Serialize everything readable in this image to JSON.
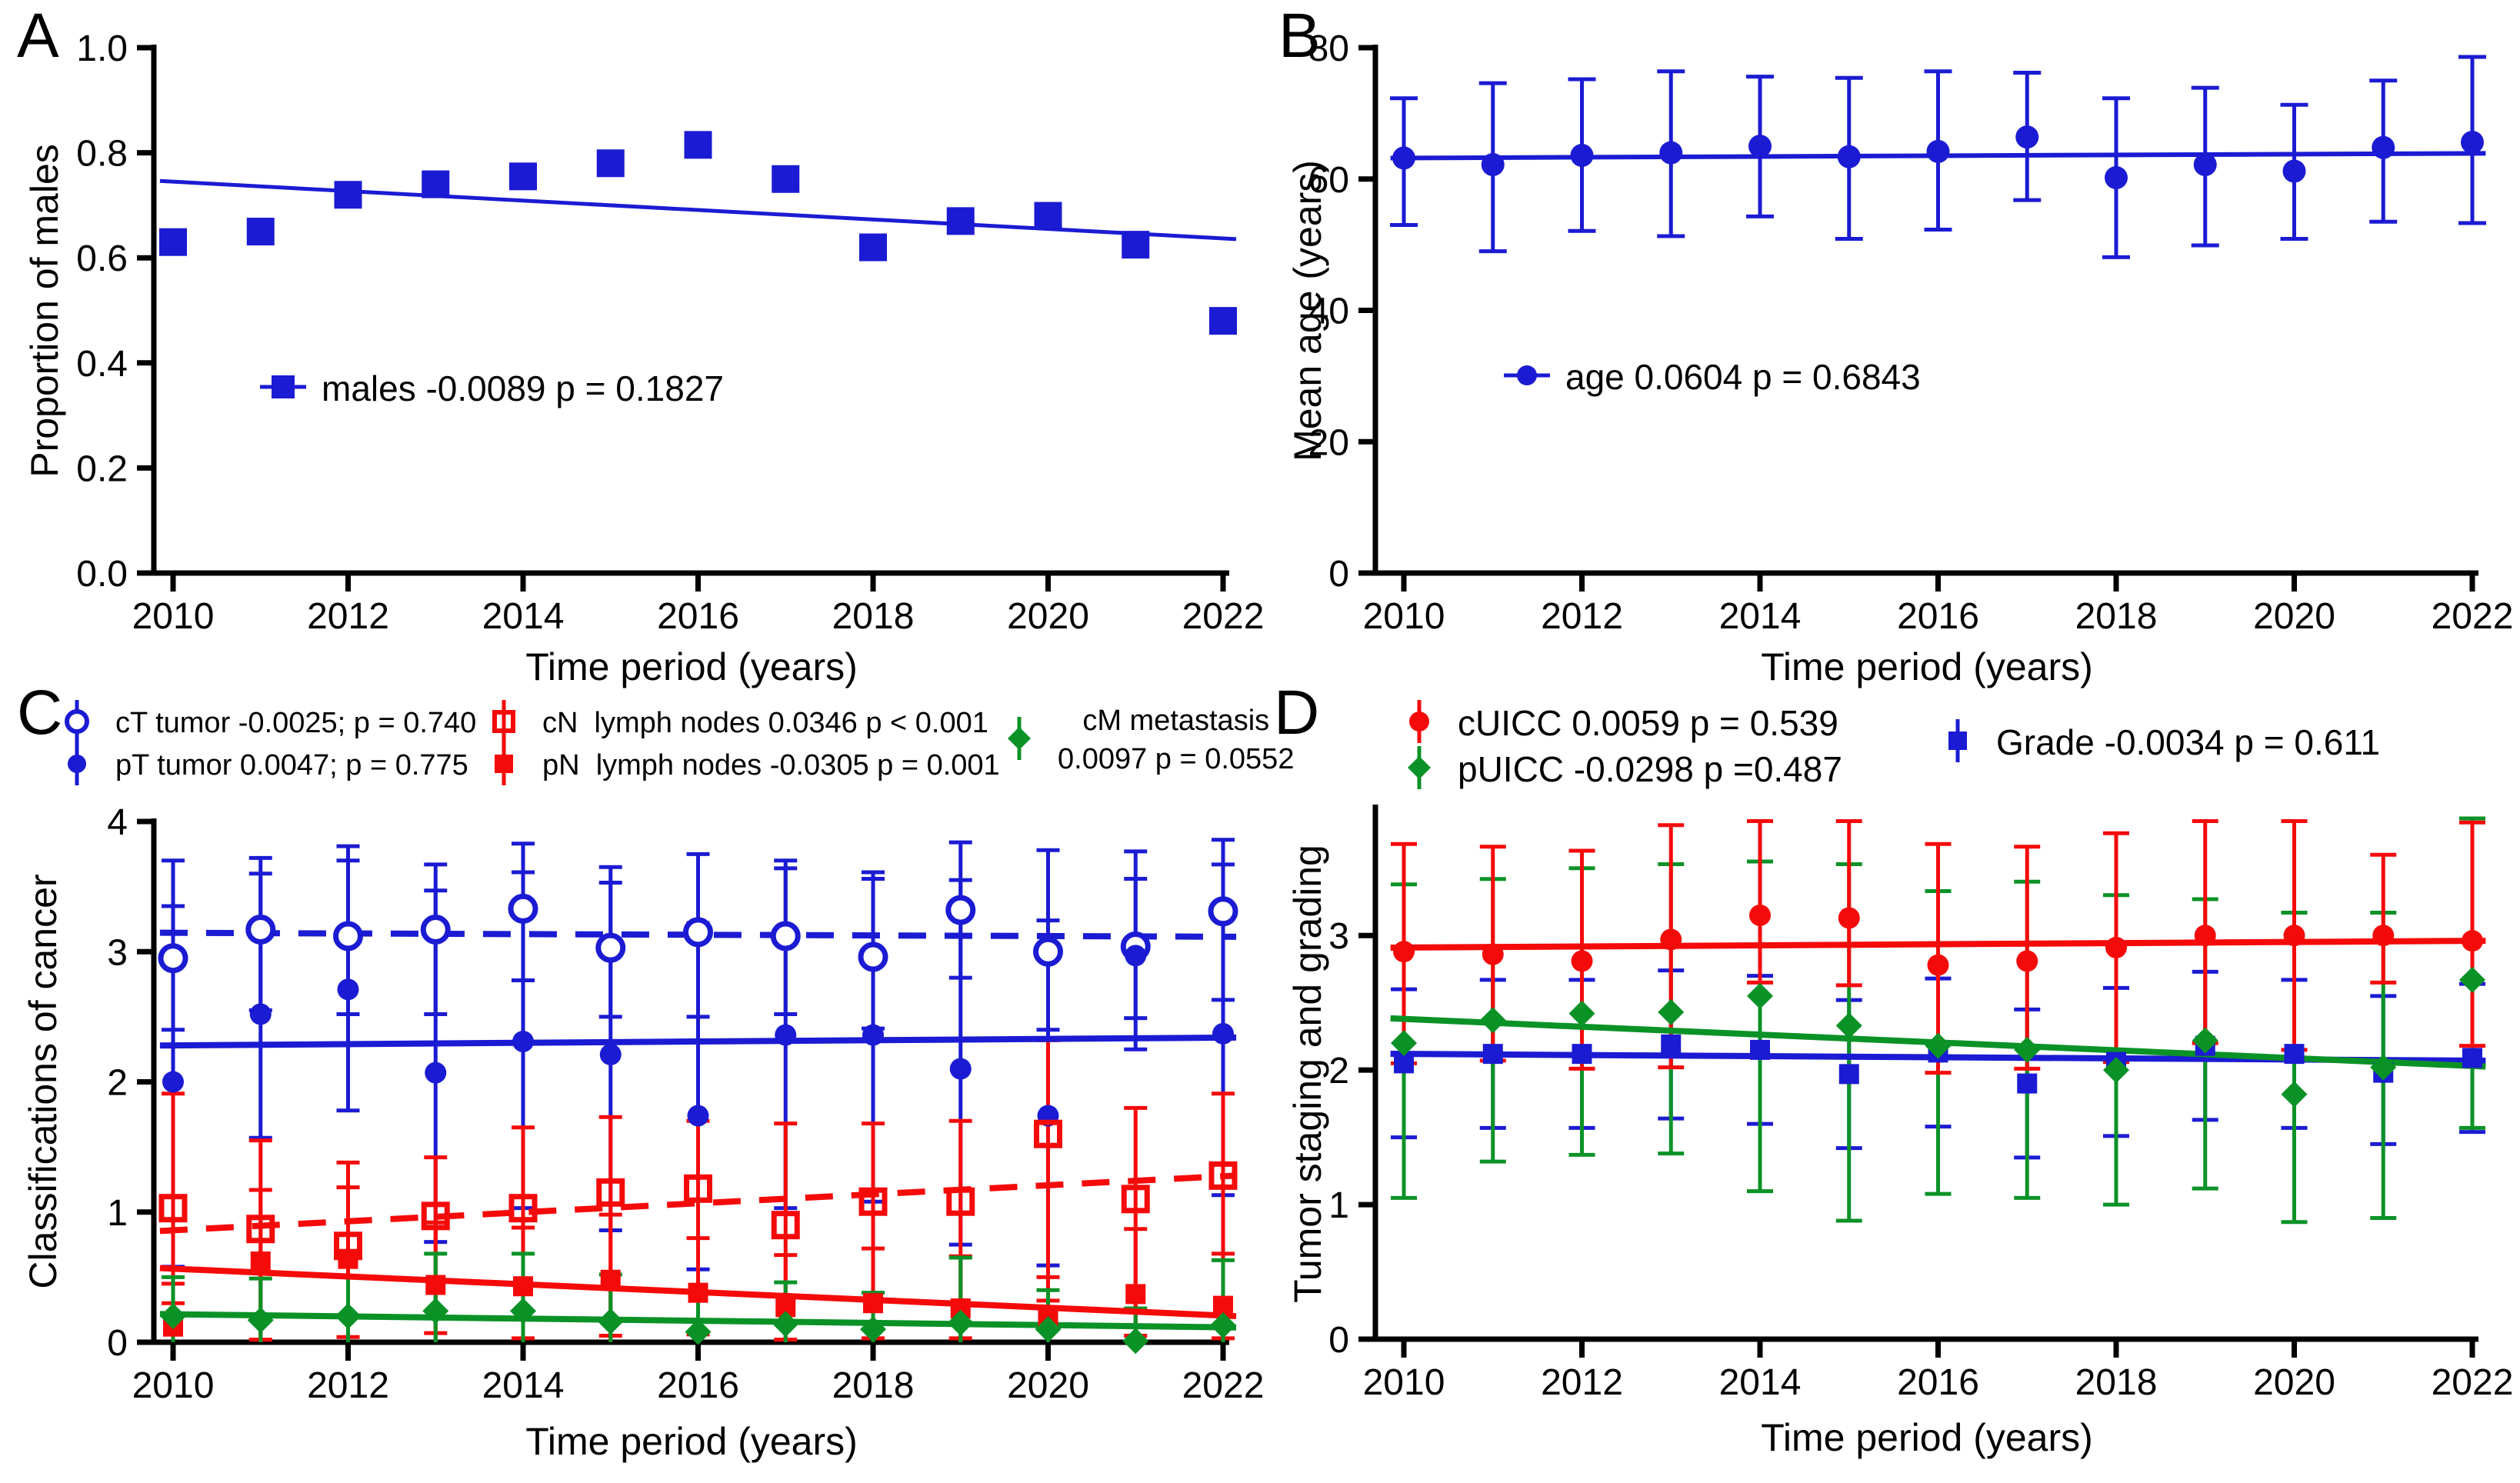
{
  "figure": {
    "background": "#ffffff",
    "colors": {
      "blue": "#1b1bd3",
      "red": "#f50a0a",
      "green": "#0b9227",
      "axis": "#000000"
    }
  },
  "chart_data": [
    {
      "panel_label": "A",
      "type": "scatter",
      "xlabel": "Time period (years)",
      "ylabel": "Proportion of males",
      "x": [
        2010,
        2011,
        2012,
        2013,
        2014,
        2015,
        2016,
        2017,
        2018,
        2019,
        2020,
        2021,
        2022
      ],
      "xticks": [
        2010,
        2012,
        2014,
        2016,
        2018,
        2020,
        2022
      ],
      "xtick_labels": [
        "2010",
        "2012",
        "2014",
        "2016",
        "2018",
        "2020",
        "2022"
      ],
      "ylim": [
        0,
        1.0
      ],
      "yticks": [
        0,
        0.2,
        0.4,
        0.6,
        0.8,
        1.0
      ],
      "ytick_labels": [
        "0.0",
        "0.2",
        "0.4",
        "0.6",
        "0.8",
        "1.0"
      ],
      "grid": false,
      "series": [
        {
          "name": "males",
          "color": "#1b1bd3",
          "marker": "square-filled",
          "size": 18,
          "values": [
            0.63,
            0.65,
            0.72,
            0.74,
            0.755,
            0.78,
            0.815,
            0.75,
            0.62,
            0.67,
            0.68,
            0.625,
            0.48
          ],
          "trend": {
            "y_start": 0.745,
            "y_end": 0.637,
            "style": "solid"
          }
        }
      ],
      "legend": {
        "position": "inside-lower-left",
        "entries": [
          {
            "label": "males -0.0089 p = 0.1827",
            "marker": "square-filled",
            "color": "#1b1bd3",
            "size": 15,
            "whisker": "h"
          }
        ]
      }
    },
    {
      "panel_label": "B",
      "type": "scatter",
      "xlabel": "Time period (years)",
      "ylabel": "Mean age (years)",
      "x": [
        2010,
        2011,
        2012,
        2013,
        2014,
        2015,
        2016,
        2017,
        2018,
        2019,
        2020,
        2021,
        2022
      ],
      "xticks": [
        2010,
        2012,
        2014,
        2016,
        2018,
        2020,
        2022
      ],
      "xtick_labels": [
        "2010",
        "2012",
        "2014",
        "2016",
        "2018",
        "2020",
        "2022"
      ],
      "ylim": [
        0,
        80
      ],
      "yticks": [
        0,
        20,
        40,
        60,
        80
      ],
      "ytick_labels": [
        "0",
        "20",
        "40",
        "60",
        "80"
      ],
      "grid": false,
      "series": [
        {
          "name": "age",
          "color": "#1b1bd3",
          "marker": "circle-filled",
          "size": 15,
          "values": [
            63.2,
            62.2,
            63.6,
            64.0,
            65.0,
            63.4,
            64.2,
            66.4,
            60.2,
            62.2,
            61.2,
            64.8,
            65.6
          ],
          "err_up": [
            9.1,
            12.4,
            11.6,
            12.4,
            10.6,
            12.0,
            12.2,
            9.8,
            12.1,
            11.7,
            10.1,
            10.2,
            13.0
          ],
          "err_dn": [
            10.2,
            13.2,
            11.5,
            12.7,
            10.7,
            12.5,
            11.9,
            9.6,
            12.1,
            12.3,
            10.3,
            11.3,
            12.3
          ],
          "trend": {
            "y_start": 63.2,
            "y_end": 63.9,
            "style": "solid"
          }
        }
      ],
      "legend": {
        "position": "inside-lower-left",
        "entries": [
          {
            "label": "age 0.0604 p = 0.6843",
            "marker": "circle-filled",
            "color": "#1b1bd3",
            "size": 13,
            "whisker": "h"
          }
        ]
      }
    },
    {
      "panel_label": "C",
      "type": "scatter",
      "xlabel": "Time period (years)",
      "ylabel": "Classifications of cancer",
      "x": [
        2010,
        2011,
        2012,
        2013,
        2014,
        2015,
        2016,
        2017,
        2018,
        2019,
        2020,
        2021,
        2022
      ],
      "xticks": [
        2010,
        2012,
        2014,
        2016,
        2018,
        2020,
        2022
      ],
      "xtick_labels": [
        "2010",
        "2012",
        "2014",
        "2016",
        "2018",
        "2020",
        "2022"
      ],
      "ylim": [
        0,
        4
      ],
      "yticks": [
        0,
        1,
        2,
        3,
        4
      ],
      "ytick_labels": [
        "0",
        "1",
        "2",
        "3",
        "4"
      ],
      "grid": false,
      "series": [
        {
          "name": "cT tumor",
          "color": "#1b1bd3",
          "marker": "circle-open",
          "size": 16,
          "values": [
            2.95,
            3.17,
            3.12,
            3.17,
            3.33,
            3.03,
            3.15,
            3.12,
            2.96,
            3.32,
            3.0,
            3.04,
            3.31
          ],
          "err_up": [
            0.75,
            0.55,
            0.58,
            0.5,
            0.5,
            0.62,
            0.6,
            0.58,
            0.6,
            0.52,
            0.78,
            0.52,
            0.55
          ],
          "err_dn": [
            0.55,
            0.62,
            0.6,
            0.65,
            0.55,
            0.53,
            0.65,
            0.6,
            0.55,
            0.52,
            0.6,
            0.55,
            0.68
          ],
          "trend": {
            "y_start": 3.145,
            "y_end": 3.115,
            "style": "dashed"
          }
        },
        {
          "name": "pT tumor",
          "color": "#1b1bd3",
          "marker": "circle-filled",
          "size": 14,
          "values": [
            2.0,
            2.52,
            2.71,
            2.07,
            2.31,
            2.21,
            1.74,
            2.36,
            2.36,
            2.1,
            1.74,
            2.97,
            2.37
          ],
          "err_up": [
            1.35,
            1.08,
            1.1,
            1.4,
            1.3,
            1.32,
            1.48,
            1.28,
            1.25,
            1.45,
            1.5,
            0.8,
            1.3
          ],
          "err_dn": [
            1.42,
            0.95,
            0.93,
            1.3,
            1.28,
            1.35,
            1.18,
            1.33,
            1.28,
            1.35,
            1.15,
            0.72,
            1.24
          ],
          "trend": {
            "y_start": 2.28,
            "y_end": 2.34,
            "style": "solid"
          }
        },
        {
          "name": "cN lymph nodes",
          "color": "#f50a0a",
          "marker": "square-open",
          "size": 15,
          "values": [
            1.03,
            0.87,
            0.74,
            0.97,
            1.03,
            1.15,
            1.18,
            0.9,
            1.08,
            1.08,
            1.6,
            1.1,
            1.28
          ],
          "err_up": [
            0.88,
            0.68,
            0.64,
            0.45,
            0.62,
            0.58,
            0.52,
            0.78,
            0.6,
            0.62,
            0.72,
            0.7,
            0.63
          ],
          "err_dn": [
            0.73,
            0.85,
            0.7,
            0.9,
            1.0,
            1.1,
            1.12,
            0.88,
            1.05,
            1.05,
            1.28,
            1.05,
            1.25
          ],
          "trend": {
            "y_start": 0.86,
            "y_end": 1.275,
            "style": "dashed"
          }
        },
        {
          "name": "pN lymph nodes",
          "color": "#f50a0a",
          "marker": "square-filled",
          "size": 13,
          "values": [
            0.12,
            0.62,
            0.64,
            0.44,
            0.43,
            0.48,
            0.38,
            0.27,
            0.3,
            0.26,
            0.2,
            0.37,
            0.28
          ],
          "err_up": [
            0.33,
            0.55,
            0.55,
            0.48,
            0.45,
            0.5,
            0.42,
            0.4,
            0.42,
            0.4,
            0.3,
            0.5,
            0.4
          ],
          "err_dn": [
            0.12,
            0.62,
            0.64,
            0.44,
            0.43,
            0.48,
            0.38,
            0.27,
            0.3,
            0.26,
            0.2,
            0.37,
            0.28
          ],
          "trend": {
            "y_start": 0.565,
            "y_end": 0.205,
            "style": "solid"
          }
        },
        {
          "name": "cM metastasis",
          "color": "#0b9227",
          "marker": "diamond-filled",
          "size": 17,
          "values": [
            0.2,
            0.17,
            0.2,
            0.24,
            0.24,
            0.16,
            0.08,
            0.14,
            0.1,
            0.15,
            0.1,
            0.01,
            0.13
          ],
          "err_up": [
            0.3,
            0.32,
            0.3,
            0.44,
            0.44,
            0.36,
            0.3,
            0.32,
            0.28,
            0.5,
            0.3,
            0.25,
            0.5
          ],
          "err_dn": [
            0.2,
            0.17,
            0.2,
            0.24,
            0.24,
            0.16,
            0.08,
            0.14,
            0.1,
            0.15,
            0.1,
            0.01,
            0.13
          ],
          "trend": {
            "y_start": 0.215,
            "y_end": 0.115,
            "style": "solid"
          }
        }
      ],
      "legend": {
        "position": "above",
        "entries": [
          {
            "label": "cT tumor -0.0025; p = 0.740",
            "marker": "circle-open",
            "color": "#1b1bd3",
            "size": 13,
            "whisker": "v"
          },
          {
            "label": "pT tumor 0.0047; p = 0.775",
            "marker": "circle-filled",
            "color": "#1b1bd3",
            "size": 12,
            "whisker": "v"
          },
          {
            "label": "cN  lymph nodes 0.0346 p < 0.001",
            "marker": "square-open",
            "color": "#f50a0a",
            "size": 12,
            "whisker": "v"
          },
          {
            "label": "pN  lymph nodes -0.0305 p = 0.001",
            "marker": "square-filled",
            "color": "#f50a0a",
            "size": 12,
            "whisker": "v"
          },
          {
            "label": "cM metastasis",
            "label2": "0.0097 p = 0.0552",
            "marker": "diamond-filled",
            "color": "#0b9227",
            "size": 15,
            "whisker": "v"
          }
        ]
      }
    },
    {
      "panel_label": "D",
      "type": "scatter",
      "xlabel": "Time period (years)",
      "ylabel": "Tumor staging and grading",
      "x": [
        2010,
        2011,
        2012,
        2013,
        2014,
        2015,
        2016,
        2017,
        2018,
        2019,
        2020,
        2021,
        2022
      ],
      "xticks": [
        2010,
        2012,
        2014,
        2016,
        2018,
        2020,
        2022
      ],
      "xtick_labels": [
        "2010",
        "2012",
        "2014",
        "2016",
        "2018",
        "2020",
        "2022"
      ],
      "ylim": [
        0,
        3.95
      ],
      "yticks": [
        0,
        1,
        2,
        3
      ],
      "ytick_labels": [
        "0",
        "1",
        "2",
        "3"
      ],
      "grid": false,
      "series": [
        {
          "name": "Grade",
          "color": "#1b1bd3",
          "marker": "square-filled",
          "size": 13,
          "values": [
            2.05,
            2.12,
            2.12,
            2.19,
            2.15,
            1.97,
            2.13,
            1.9,
            2.06,
            2.18,
            2.12,
            1.98,
            2.09
          ],
          "err_up": [
            0.55,
            0.55,
            0.55,
            0.55,
            0.55,
            0.55,
            0.55,
            0.55,
            0.55,
            0.55,
            0.55,
            0.57,
            0.55
          ],
          "err_dn": [
            0.55,
            0.55,
            0.55,
            0.55,
            0.55,
            0.55,
            0.55,
            0.55,
            0.55,
            0.55,
            0.55,
            0.53,
            0.55
          ],
          "trend": {
            "y_start": 2.12,
            "y_end": 2.07,
            "style": "solid"
          }
        },
        {
          "name": "pUICC",
          "color": "#0b9227",
          "marker": "diamond-filled",
          "size": 17,
          "values": [
            2.2,
            2.37,
            2.42,
            2.43,
            2.55,
            2.33,
            2.18,
            2.15,
            2.0,
            2.22,
            1.82,
            2.02,
            2.67
          ],
          "err_up": [
            1.18,
            1.05,
            1.08,
            1.1,
            1.0,
            1.2,
            1.15,
            1.25,
            1.3,
            1.05,
            1.35,
            1.15,
            1.2
          ],
          "err_dn": [
            1.15,
            1.05,
            1.05,
            1.05,
            1.45,
            1.45,
            1.1,
            1.1,
            1.0,
            1.1,
            0.95,
            1.12,
            1.1
          ],
          "trend": {
            "y_start": 2.38,
            "y_end": 2.03,
            "style": "solid"
          }
        },
        {
          "name": "cUICC",
          "color": "#f50a0a",
          "marker": "circle-filled",
          "size": 14,
          "values": [
            2.88,
            2.86,
            2.81,
            2.97,
            3.15,
            3.13,
            2.78,
            2.81,
            2.91,
            3.0,
            3.0,
            3.0,
            2.96
          ],
          "err_up": [
            0.8,
            0.8,
            0.82,
            0.85,
            0.7,
            0.72,
            0.9,
            0.85,
            0.85,
            0.85,
            0.85,
            0.6,
            0.88
          ],
          "err_dn": [
            0.83,
            0.79,
            0.8,
            0.95,
            0.5,
            0.5,
            0.8,
            0.8,
            0.85,
            0.8,
            0.85,
            0.35,
            0.78
          ],
          "trend": {
            "y_start": 2.91,
            "y_end": 2.96,
            "style": "solid"
          }
        }
      ],
      "legend": {
        "position": "above",
        "entries": [
          {
            "label": "cUICC 0.0059 p = 0.539",
            "marker": "circle-filled",
            "color": "#f50a0a",
            "size": 13,
            "whisker": "v"
          },
          {
            "label": "pUICC -0.0298 p =0.487",
            "marker": "diamond-filled",
            "color": "#0b9227",
            "size": 15,
            "whisker": "v"
          },
          {
            "label": "Grade -0.0034 p = 0.611",
            "marker": "square-filled",
            "color": "#1b1bd3",
            "size": 12,
            "whisker": "v"
          }
        ]
      }
    }
  ]
}
